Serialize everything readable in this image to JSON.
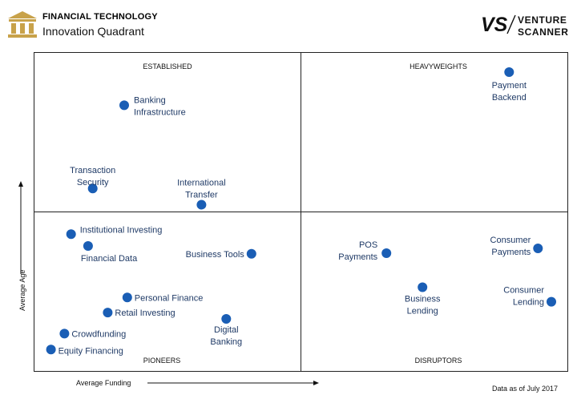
{
  "header": {
    "title": "FINANCIAL TECHNOLOGY",
    "subtitle": "Innovation Quadrant",
    "logo_icon": "bank-building-icon",
    "brand_mark": "VS",
    "brand_line1": "VENTURE",
    "brand_line2": "SCANNER"
  },
  "footnote": "Data as of July 2017",
  "chart_data": {
    "type": "scatter",
    "xlabel": "Average Funding",
    "ylabel": "Average Age",
    "xlim": [
      0,
      100
    ],
    "ylim": [
      0,
      100
    ],
    "quadrants": [
      {
        "label": "ESTABLISHED",
        "position": "top-left"
      },
      {
        "label": "HEAVYWEIGHTS",
        "position": "top-right"
      },
      {
        "label": "PIONEERS",
        "position": "bottom-left"
      },
      {
        "label": "DISRUPTORS",
        "position": "bottom-right"
      }
    ],
    "point_color": "#1a5eb5",
    "points": [
      {
        "label": [
          "Payment",
          "Backend"
        ],
        "x": 90.4,
        "y": 96.0
      },
      {
        "label": [
          "Banking",
          "Infrastructure"
        ],
        "x": 15.7,
        "y": 85.0
      },
      {
        "label": [
          "Transaction",
          "Security"
        ],
        "x": 9.6,
        "y": 57.4
      },
      {
        "label": [
          "International",
          "Transfer"
        ],
        "x": 30.7,
        "y": 52.0
      },
      {
        "label": [
          "Institutional Investing"
        ],
        "x": 5.4,
        "y": 42.2
      },
      {
        "label": [
          "Financial Data"
        ],
        "x": 8.7,
        "y": 38.3
      },
      {
        "label": [
          "Business Tools"
        ],
        "x": 40.4,
        "y": 35.7
      },
      {
        "label": [
          "POS",
          "Payments"
        ],
        "x": 66.6,
        "y": 35.9
      },
      {
        "label": [
          "Consumer",
          "Payments"
        ],
        "x": 96.0,
        "y": 37.5
      },
      {
        "label": [
          "Business",
          "Lending"
        ],
        "x": 73.6,
        "y": 24.6
      },
      {
        "label": [
          "Consumer",
          "Lending"
        ],
        "x": 98.6,
        "y": 19.8
      },
      {
        "label": [
          "Personal Finance"
        ],
        "x": 16.3,
        "y": 21.2
      },
      {
        "label": [
          "Retail Investing"
        ],
        "x": 12.5,
        "y": 16.2
      },
      {
        "label": [
          "Digital",
          "Banking"
        ],
        "x": 35.5,
        "y": 14.1
      },
      {
        "label": [
          "Crowdfunding"
        ],
        "x": 4.1,
        "y": 9.2
      },
      {
        "label": [
          "Equity Financing"
        ],
        "x": 1.5,
        "y": 3.9
      }
    ]
  }
}
